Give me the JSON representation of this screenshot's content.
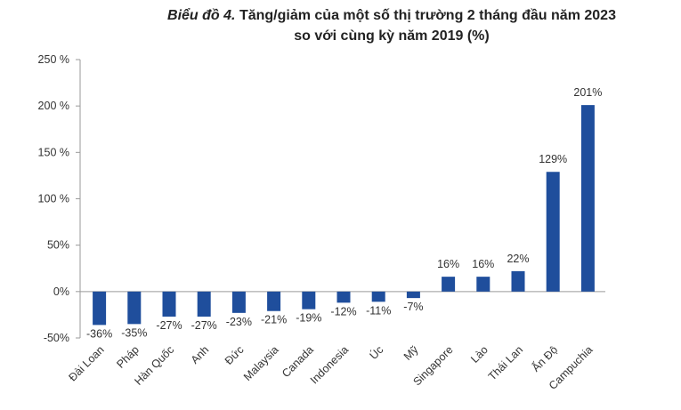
{
  "chart_data": {
    "type": "bar",
    "title_prefix": "Biểu đồ 4.",
    "title_main": "Tăng/giảm của một số thị trường 2 tháng đầu năm 2023",
    "title_line2": "so với cùng kỳ năm 2019 (%)",
    "categories": [
      "Đài Loan",
      "Pháp",
      "Hàn Quốc",
      "Anh",
      "Đức",
      "Malaysia",
      "Canada",
      "Indonesia",
      "Úc",
      "Mỹ",
      "Singapore",
      "Lào",
      "Thái Lan",
      "Ấn Độ",
      "Campuchia"
    ],
    "values": [
      -36,
      -35,
      -27,
      -27,
      -23,
      -21,
      -19,
      -12,
      -11,
      -7,
      16,
      16,
      22,
      129,
      201
    ],
    "data_labels": [
      "-36%",
      "-35%",
      "-27%",
      "-27%",
      "-23%",
      "-21%",
      "-19%",
      "-12%",
      "-11%",
      "-7%",
      "16%",
      "16%",
      "22%",
      "129%",
      "201%"
    ],
    "yticks": [
      -50,
      0,
      50,
      100,
      150,
      200,
      250
    ],
    "ytick_labels": [
      "-50%",
      "0%",
      "50%",
      "100 %",
      "150 %",
      "200 %",
      "250 %"
    ],
    "ylim": [
      -50,
      250
    ],
    "bar_color": "#1f4e9c",
    "grid": false,
    "xlabel": "",
    "ylabel": ""
  }
}
